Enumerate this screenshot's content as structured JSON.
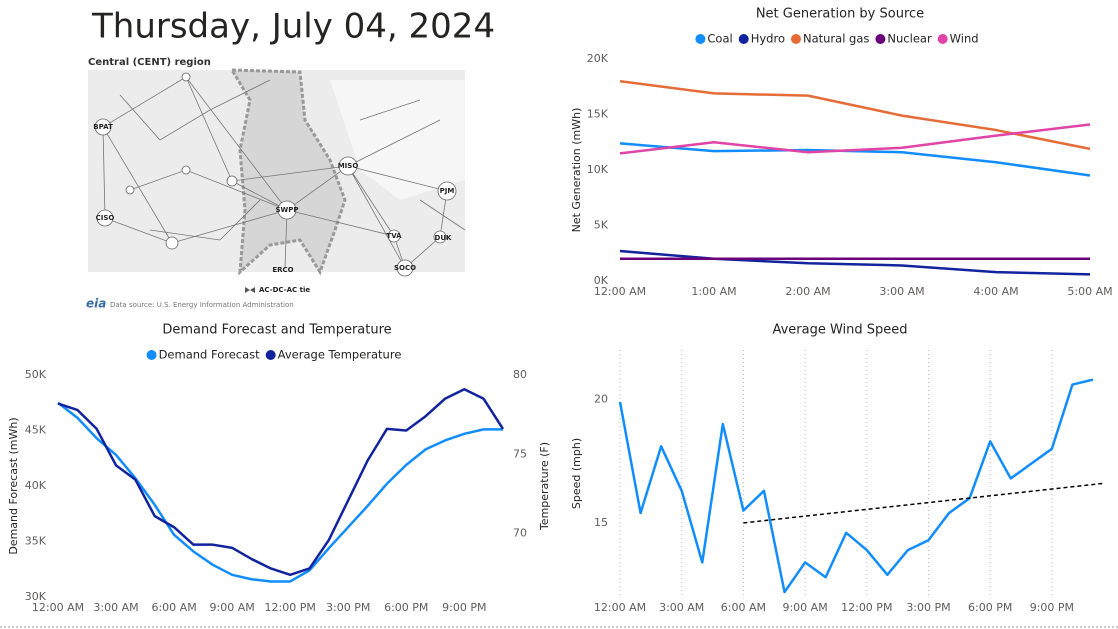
{
  "title": "Thursday, July 04, 2024",
  "map": {
    "title": "Central (CENT) region",
    "nodes": [
      "BPAT",
      "CISO",
      "SWPP",
      "MISO",
      "PJM",
      "TVA",
      "DUK",
      "SOCO",
      "ERCO"
    ],
    "legend": "AC-DC-AC tie",
    "logo": "eia",
    "source": "Data source: U.S. Energy Information Administration"
  },
  "chart_data": [
    {
      "type": "line",
      "title": "Net Generation by Source",
      "y_label": "Net Generation (mWh)",
      "categories": [
        "12:00 AM",
        "1:00 AM",
        "2:00 AM",
        "3:00 AM",
        "4:00 AM",
        "5:00 AM"
      ],
      "series": [
        {
          "name": "Coal",
          "color": "#118DFF",
          "values": [
            12400,
            11700,
            11800,
            11600,
            10700,
            9500
          ]
        },
        {
          "name": "Hydro",
          "color": "#12239E",
          "values": [
            2700,
            2000,
            1600,
            1400,
            800,
            600
          ]
        },
        {
          "name": "Natural gas",
          "color": "#E66C37",
          "values": [
            18000,
            16900,
            16700,
            14900,
            13600,
            11900
          ]
        },
        {
          "name": "Nuclear",
          "color": "#6B007B",
          "values": [
            2000,
            2000,
            2000,
            2000,
            2000,
            2000
          ]
        },
        {
          "name": "Wind",
          "color": "#E044A7",
          "values": [
            11500,
            12500,
            11600,
            12000,
            13100,
            14100
          ]
        }
      ],
      "ylim": [
        0,
        20000
      ],
      "yticks": [
        {
          "value": 0,
          "label": "0K"
        },
        {
          "value": 5000,
          "label": "5K"
        },
        {
          "value": 10000,
          "label": "10K"
        },
        {
          "value": 15000,
          "label": "15K"
        },
        {
          "value": 20000,
          "label": "20K"
        }
      ],
      "legend": "top"
    },
    {
      "type": "line",
      "title": "Demand Forecast and Temperature",
      "y_label": "Demand Forecast (mWh)",
      "y2_label": "Temperature (F)",
      "categories": [
        "12:00 AM",
        null,
        null,
        "3:00 AM",
        null,
        null,
        "6:00 AM",
        null,
        null,
        "9:00 AM",
        null,
        null,
        "12:00 PM",
        null,
        null,
        "3:00 PM",
        null,
        null,
        "6:00 PM",
        null,
        null,
        "9:00 PM",
        null,
        null
      ],
      "series": [
        {
          "name": "Demand Forecast",
          "color": "#118DFF",
          "values": [
            47500,
            46150,
            44300,
            42800,
            40700,
            38300,
            35600,
            34100,
            32900,
            32000,
            31600,
            31400,
            31400,
            32400,
            34400,
            36300,
            38200,
            40200,
            41900,
            43300,
            44100,
            44700,
            45100,
            45100
          ]
        },
        {
          "name": "Average Temperature",
          "color": "#12239E",
          "axis": "y2",
          "values": [
            78.2,
            77.8,
            76.6,
            74.3,
            73.4,
            71.1,
            70.4,
            69.3,
            69.3,
            69.1,
            68.4,
            67.8,
            67.4,
            67.8,
            69.6,
            72.1,
            74.6,
            76.6,
            76.5,
            77.4,
            78.5,
            79.1,
            78.5,
            76.6
          ]
        }
      ],
      "ylim": [
        30000,
        50000
      ],
      "yticks": [
        {
          "value": 30000,
          "label": "30K"
        },
        {
          "value": 35000,
          "label": "35K"
        },
        {
          "value": 40000,
          "label": "40K"
        },
        {
          "value": 45000,
          "label": "45K"
        },
        {
          "value": 50000,
          "label": "50K"
        }
      ],
      "y2lim": [
        66,
        80
      ],
      "y2ticks": [
        70,
        75,
        80
      ],
      "legend": "top"
    },
    {
      "type": "line",
      "title": "Average Wind Speed",
      "y_label": "Speed (mph)",
      "categories": [
        "12:00 AM",
        null,
        null,
        "3:00 AM",
        null,
        null,
        "6:00 AM",
        null,
        null,
        "9:00 AM",
        null,
        null,
        "12:00 PM",
        null,
        null,
        "3:00 PM",
        null,
        null,
        "6:00 PM",
        null,
        null,
        "9:00 PM",
        null,
        null
      ],
      "series": [
        {
          "color": "#118DFF",
          "values": [
            19.9,
            15.4,
            18.1,
            16.3,
            13.4,
            19.0,
            15.5,
            16.3,
            12.2,
            13.4,
            12.8,
            14.6,
            13.9,
            12.9,
            13.9,
            14.3,
            15.4,
            16.0,
            18.3,
            16.8,
            17.4,
            18.0,
            20.6,
            20.8
          ]
        }
      ],
      "trend": {
        "x": [
          6,
          23.5
        ],
        "values": [
          15.0,
          16.6
        ],
        "color": "#000000"
      },
      "ylim": [
        12,
        22
      ],
      "yticks": [
        15,
        20
      ],
      "grid": "x"
    }
  ]
}
